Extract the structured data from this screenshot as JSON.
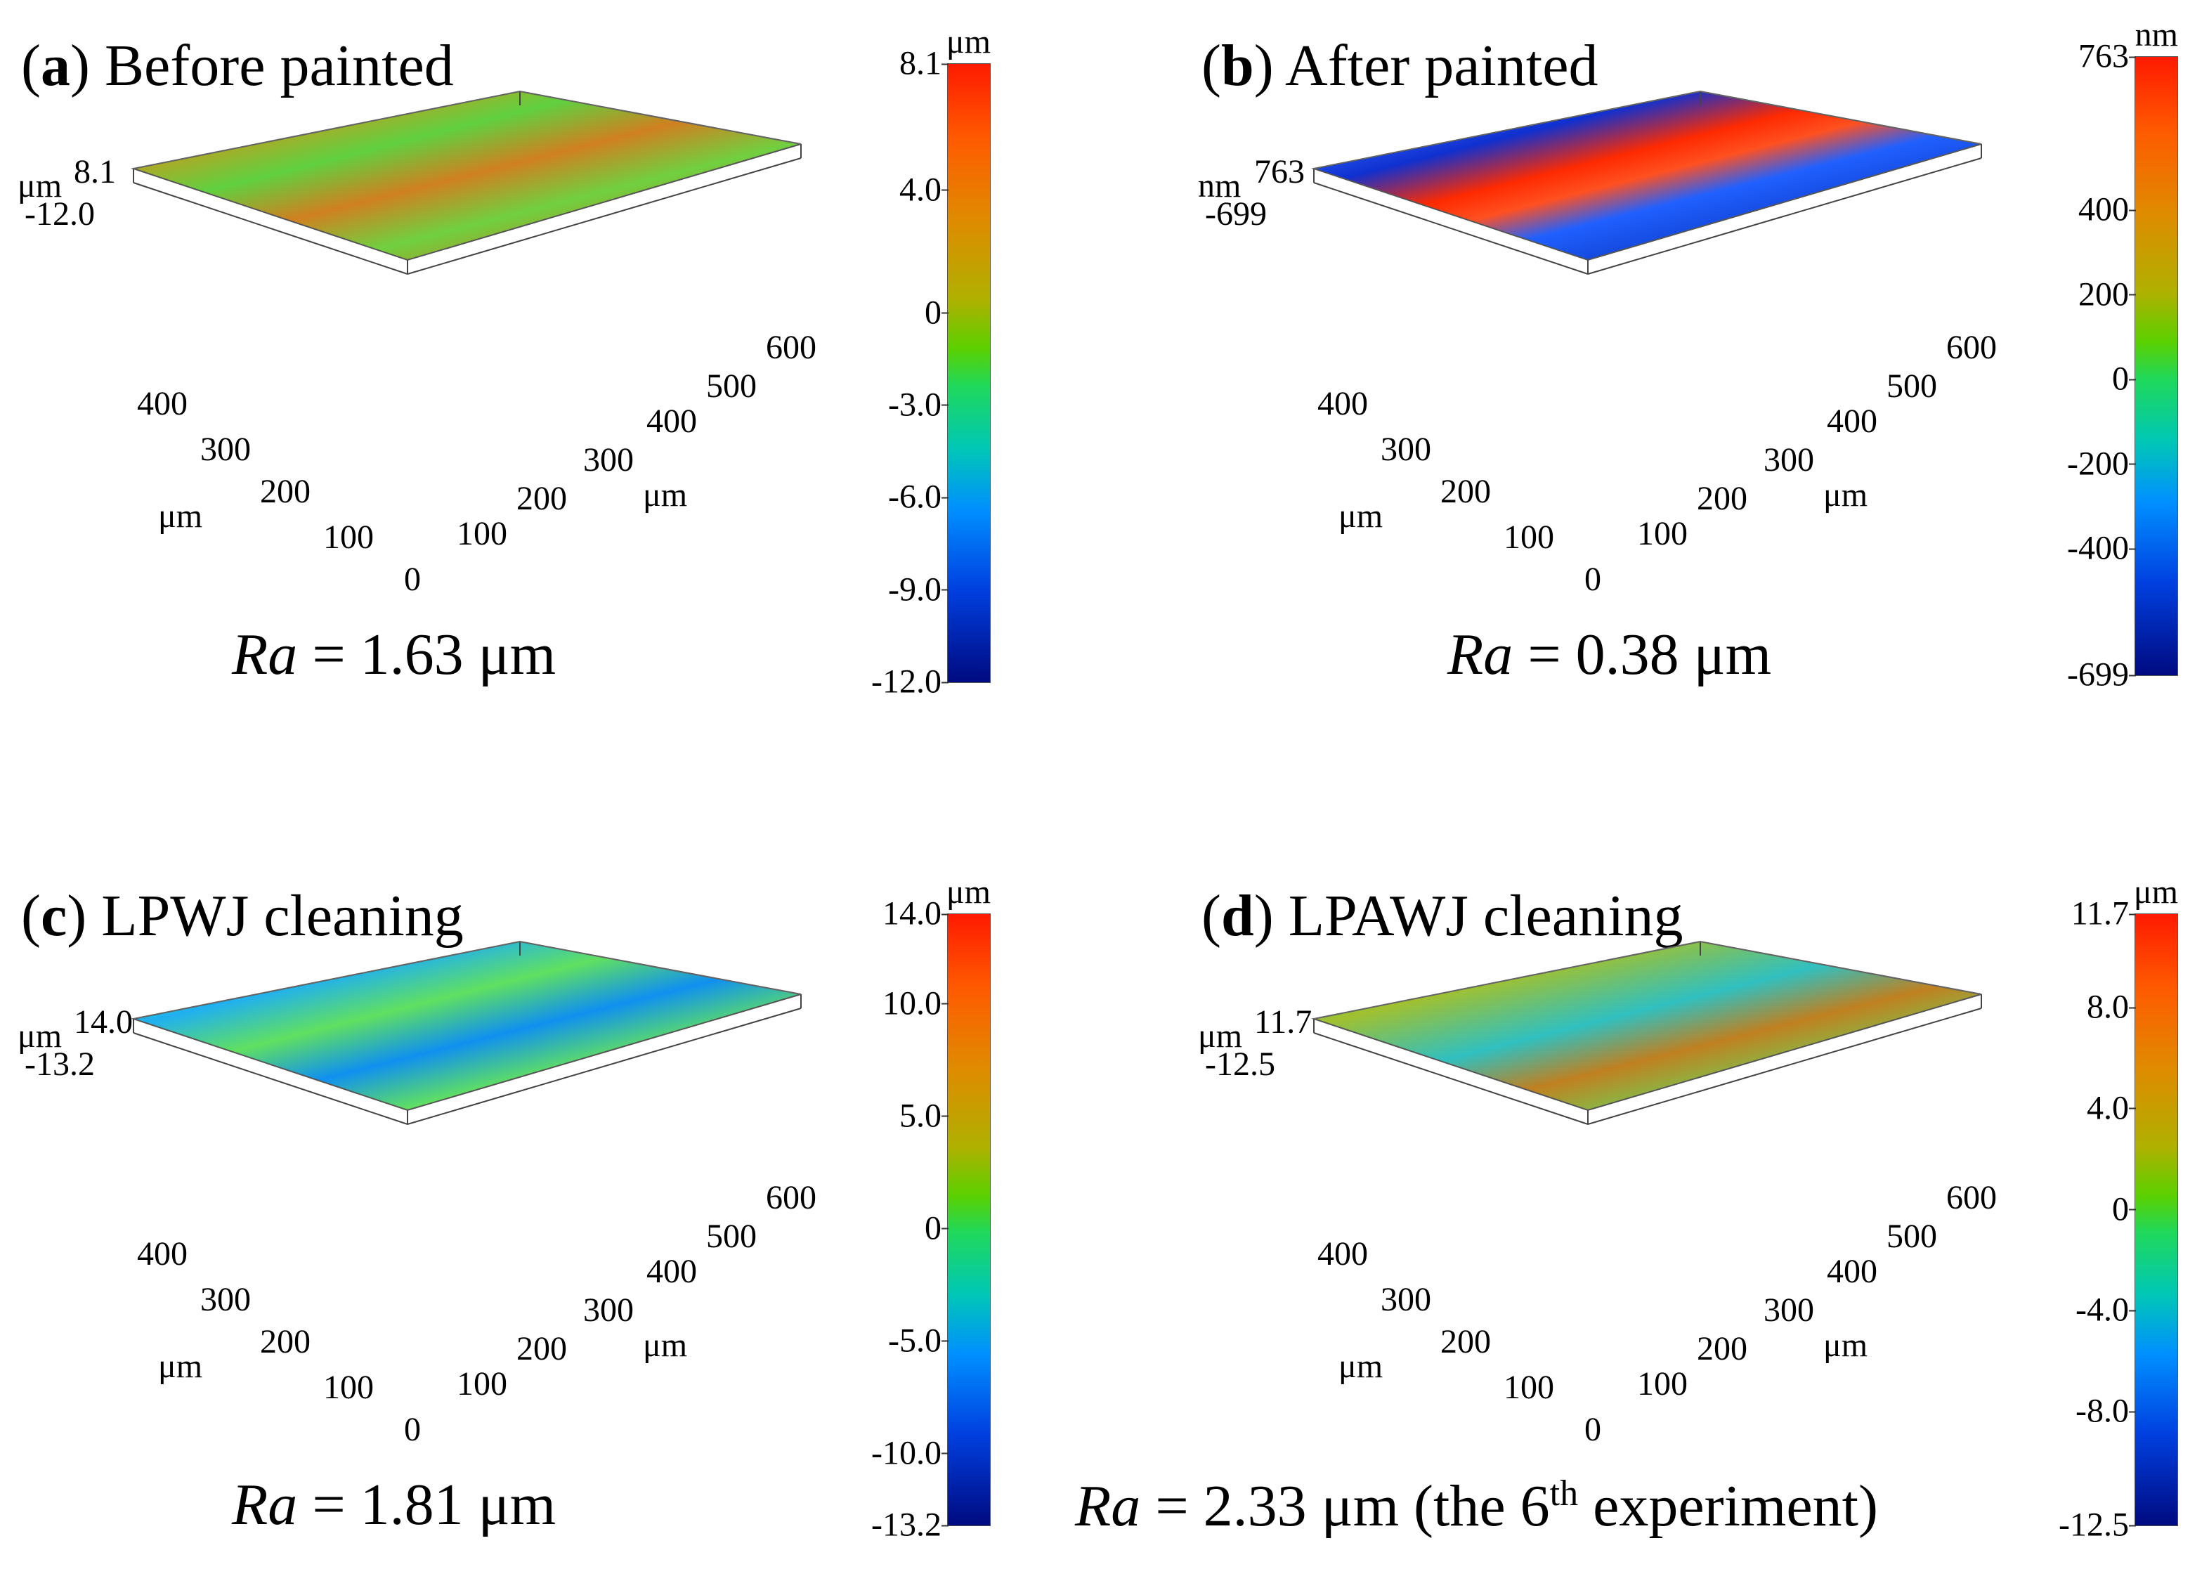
{
  "figure": {
    "panels": [
      {
        "label": "a",
        "title": "Before painted",
        "ra_symbol": "Ra",
        "ra_value": "= 1.63 μm",
        "ra_extra": "",
        "z_unit": "μm",
        "z_max": "8.1",
        "z_min": "-12.0",
        "x_axis_label": "μm",
        "y_axis_label": "μm",
        "x_ticks": [
          "0",
          "100",
          "200",
          "300",
          "400",
          "500",
          "600"
        ],
        "y_ticks": [
          "100",
          "200",
          "300",
          "400"
        ],
        "colorbar_unit": "μm",
        "colorbar_ticks": [
          "8.1",
          "4.0",
          "0",
          "-3.0",
          "-6.0",
          "-9.0",
          "-12.0"
        ],
        "colorbar_range": [
          -12.0,
          8.1
        ]
      },
      {
        "label": "b",
        "title": "After painted",
        "ra_symbol": "Ra",
        "ra_value": "= 0.38 μm",
        "ra_extra": "",
        "z_unit": "nm",
        "z_max": "763",
        "z_min": "-699",
        "x_axis_label": "μm",
        "y_axis_label": "μm",
        "x_ticks": [
          "0",
          "100",
          "200",
          "300",
          "400",
          "500",
          "600"
        ],
        "y_ticks": [
          "100",
          "200",
          "300",
          "400"
        ],
        "colorbar_unit": "nm",
        "colorbar_ticks": [
          "763",
          "400",
          "200",
          "0",
          "-200",
          "-400",
          "-699"
        ],
        "colorbar_range": [
          -699,
          763
        ]
      },
      {
        "label": "c",
        "title": "LPWJ cleaning",
        "ra_symbol": "Ra",
        "ra_value": "= 1.81 μm",
        "ra_extra": "",
        "z_unit": "μm",
        "z_max": "14.0",
        "z_min": "-13.2",
        "x_axis_label": "μm",
        "y_axis_label": "μm",
        "x_ticks": [
          "0",
          "100",
          "200",
          "300",
          "400",
          "500",
          "600"
        ],
        "y_ticks": [
          "100",
          "200",
          "300",
          "400"
        ],
        "colorbar_unit": "μm",
        "colorbar_ticks": [
          "14.0",
          "10.0",
          "5.0",
          "0",
          "-5.0",
          "-10.0",
          "-13.2"
        ],
        "colorbar_range": [
          -13.2,
          14.0
        ]
      },
      {
        "label": "d",
        "title": "LPAWJ cleaning",
        "ra_symbol": "Ra",
        "ra_value": "=  2.33 μm (the 6",
        "ra_extra": "th",
        "ra_tail": " experiment)",
        "z_unit": "μm",
        "z_max": "11.7",
        "z_min": "-12.5",
        "x_axis_label": "μm",
        "y_axis_label": "μm",
        "x_ticks": [
          "0",
          "100",
          "200",
          "300",
          "400",
          "500",
          "600"
        ],
        "y_ticks": [
          "100",
          "200",
          "300",
          "400"
        ],
        "colorbar_unit": "μm",
        "colorbar_ticks": [
          "11.7",
          "8.0",
          "4.0",
          "0",
          "-4.0",
          "-8.0",
          "-12.5"
        ],
        "colorbar_range": [
          -12.5,
          11.7
        ]
      }
    ]
  }
}
